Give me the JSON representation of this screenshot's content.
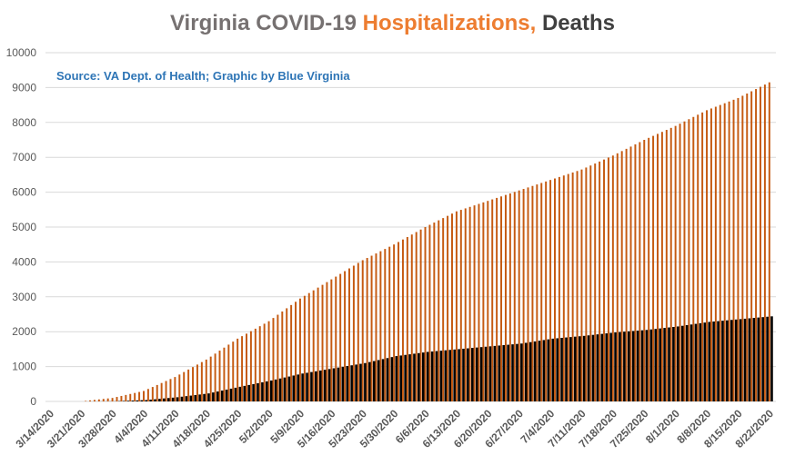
{
  "title": {
    "part1": "Virginia COVID-19 ",
    "part2": "Hospitalizations,",
    "part3": " Deaths"
  },
  "source_note": "Source: VA Dept. of Health; Graphic by Blue Virginia",
  "colors": {
    "title_gray": "#767171",
    "title_orange": "#ED7D31",
    "title_dark": "#404040",
    "source_blue": "#2E75B6",
    "hospitalizations": "#C55A11",
    "deaths": "#000000",
    "grid": "#D9D9D9",
    "axis_text": "#595959"
  },
  "chart_data": {
    "type": "bar",
    "title": "Virginia COVID-19 Hospitalizations, Deaths",
    "grid": true,
    "ylim": [
      0,
      10000
    ],
    "yticks": [
      "0",
      "1000",
      "2000",
      "3000",
      "4000",
      "5000",
      "6000",
      "7000",
      "8000",
      "9000",
      "10000"
    ],
    "x_start": "3/14/2020",
    "x_end": "8/22/2020",
    "xtick_labels": [
      "3/14/2020",
      "3/21/2020",
      "3/28/2020",
      "4/4/2020",
      "4/11/2020",
      "4/18/2020",
      "4/25/2020",
      "5/2/2020",
      "5/9/2020",
      "5/16/2020",
      "5/23/2020",
      "5/30/2020",
      "6/6/2020",
      "6/13/2020",
      "6/20/2020",
      "6/27/2020",
      "7/4/2020",
      "7/11/2020",
      "7/18/2020",
      "7/25/2020",
      "8/1/2020",
      "8/8/2020",
      "8/15/2020",
      "8/22/2020"
    ],
    "series": [
      {
        "name": "Hospitalizations",
        "color": "#C55A11",
        "points": [
          [
            "3/14/2020",
            0
          ],
          [
            "3/21/2020",
            0
          ],
          [
            "3/23/2020",
            30
          ],
          [
            "3/28/2020",
            100
          ],
          [
            "4/4/2020",
            300
          ],
          [
            "4/11/2020",
            700
          ],
          [
            "4/18/2020",
            1200
          ],
          [
            "4/25/2020",
            1800
          ],
          [
            "5/2/2020",
            2300
          ],
          [
            "5/9/2020",
            2950
          ],
          [
            "5/16/2020",
            3500
          ],
          [
            "5/23/2020",
            4050
          ],
          [
            "5/30/2020",
            4500
          ],
          [
            "6/6/2020",
            5000
          ],
          [
            "6/13/2020",
            5450
          ],
          [
            "6/20/2020",
            5750
          ],
          [
            "6/27/2020",
            6050
          ],
          [
            "7/4/2020",
            6350
          ],
          [
            "7/11/2020",
            6650
          ],
          [
            "7/18/2020",
            7050
          ],
          [
            "7/25/2020",
            7500
          ],
          [
            "8/1/2020",
            7900
          ],
          [
            "8/8/2020",
            8350
          ],
          [
            "8/15/2020",
            8700
          ],
          [
            "8/22/2020",
            9150
          ]
        ]
      },
      {
        "name": "Deaths",
        "color": "#000000",
        "points": [
          [
            "3/14/2020",
            0
          ],
          [
            "3/21/2020",
            0
          ],
          [
            "3/28/2020",
            5
          ],
          [
            "4/4/2020",
            40
          ],
          [
            "4/11/2020",
            120
          ],
          [
            "4/18/2020",
            230
          ],
          [
            "4/25/2020",
            420
          ],
          [
            "5/2/2020",
            600
          ],
          [
            "5/9/2020",
            800
          ],
          [
            "5/16/2020",
            950
          ],
          [
            "5/23/2020",
            1100
          ],
          [
            "5/30/2020",
            1300
          ],
          [
            "6/6/2020",
            1420
          ],
          [
            "6/13/2020",
            1500
          ],
          [
            "6/20/2020",
            1580
          ],
          [
            "6/27/2020",
            1660
          ],
          [
            "7/4/2020",
            1800
          ],
          [
            "7/11/2020",
            1880
          ],
          [
            "7/18/2020",
            1980
          ],
          [
            "7/25/2020",
            2050
          ],
          [
            "8/1/2020",
            2150
          ],
          [
            "8/8/2020",
            2280
          ],
          [
            "8/15/2020",
            2360
          ],
          [
            "8/22/2020",
            2440
          ]
        ]
      }
    ]
  }
}
